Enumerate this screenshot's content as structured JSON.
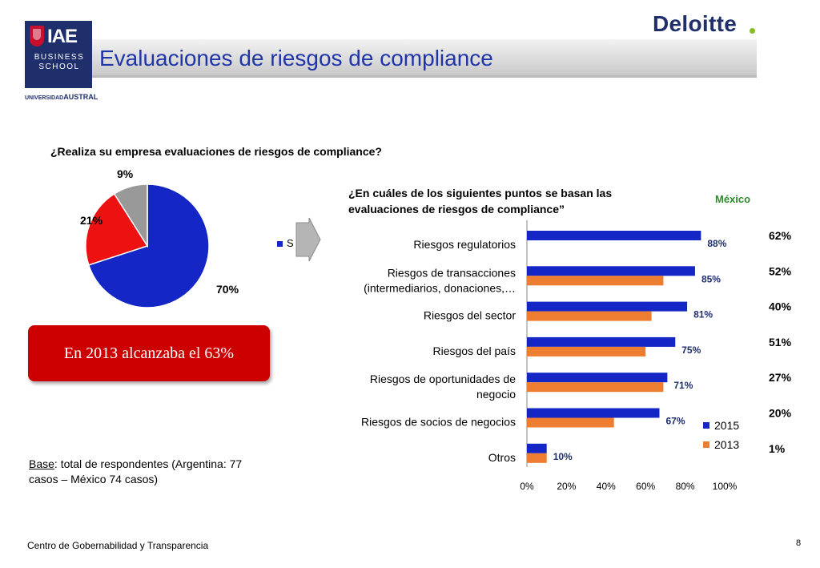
{
  "header": {
    "iae_logo_line1": "IAE",
    "iae_logo_line2": "BUSINESS SCHOOL",
    "university_small": "UNIVERSIDAD",
    "university_name": "AUSTRAL",
    "title": "Evaluaciones de riesgos de compliance",
    "deloitte": "Deloitte"
  },
  "colors": {
    "title_blue": "#1f35a8",
    "series_2015": "#1426c6",
    "series_2013": "#ed7d31",
    "pie_red": "#ee1111",
    "pie_gray": "#999999",
    "mexico_green": "#2e8b2e",
    "callout_red": "#cc0000",
    "deloitte_green": "#86bc25"
  },
  "pie_section": {
    "question": "¿Realiza su empresa evaluaciones de riesgos de compliance?",
    "legend_text": "S",
    "callout": "En 2013 alcanzaba el 63%"
  },
  "bar_section": {
    "question": "¿En cuáles de los siguientes puntos se basan las evaluaciones de riesgos de compliance”",
    "mexico_label": "México",
    "mexico_values": [
      "62%",
      "52%",
      "40%",
      "51%",
      "27%",
      "20%",
      "1%"
    ]
  },
  "chart_data": [
    {
      "type": "pie",
      "slices": [
        {
          "label": "70%",
          "value": 70,
          "color": "#1426c6"
        },
        {
          "label": "21%",
          "value": 21,
          "color": "#ee1111"
        },
        {
          "label": "9%",
          "value": 9,
          "color": "#999999"
        }
      ]
    },
    {
      "type": "bar",
      "orientation": "horizontal",
      "categories": [
        [
          "Riesgos regulatorios"
        ],
        [
          "Riesgos de transacciones",
          "(intermediarios, donaciones,…"
        ],
        [
          "Riesgos del sector"
        ],
        [
          "Riesgos del país"
        ],
        [
          "Riesgos de oportunidades de",
          "negocio"
        ],
        [
          "Riesgos de socios de negocios"
        ],
        [
          "Otros"
        ]
      ],
      "series": [
        {
          "name": "2015",
          "color": "#1426c6",
          "values": [
            88,
            85,
            81,
            75,
            71,
            67,
            10
          ],
          "labels": [
            "88%",
            "85%",
            "81%",
            "75%",
            "71%",
            "67%",
            "10%"
          ]
        },
        {
          "name": "2013",
          "color": "#ed7d31",
          "values": [
            null,
            69,
            63,
            60,
            69,
            44,
            10
          ]
        }
      ],
      "xlim": [
        0,
        100
      ],
      "x_ticks": [
        "0%",
        "20%",
        "40%",
        "60%",
        "80%",
        "100%"
      ],
      "legend_position": "bottom-right"
    }
  ],
  "footer": {
    "base_label": "Base",
    "base_text": ": total de respondentes (Argentina: 77 casos – México 74 casos)",
    "center": "Centro de Gobernabilidad y Transparencia",
    "page": "8"
  }
}
